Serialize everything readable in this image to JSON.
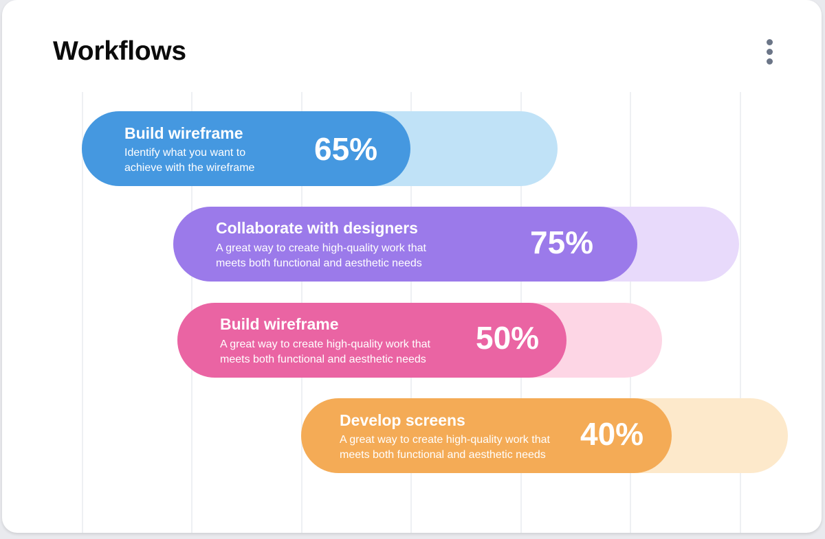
{
  "header": {
    "title": "Workflows",
    "menu_icon": "more-vertical-icon"
  },
  "workflows": [
    {
      "title": "Build wireframe",
      "description": "Identify what you want to\nachieve with the wireframe",
      "percent_label": "65%",
      "progress": 0.65,
      "color": "#4598e0",
      "track_color": "#c0e2f7"
    },
    {
      "title": "Collaborate with designers",
      "description": "A great way to create high-quality work that\nmeets both functional and aesthetic needs",
      "percent_label": "75%",
      "progress": 0.75,
      "color": "#9b7aea",
      "track_color": "#e8dafb"
    },
    {
      "title": "Build wireframe",
      "description": "A great way to create high-quality work that\nmeets both functional and aesthetic needs",
      "percent_label": "50%",
      "progress": 0.5,
      "color": "#ea64a3",
      "track_color": "#fdd6e5"
    },
    {
      "title": "Develop screens",
      "description": "A great way to create high-quality work that\nmeets both functional and aesthetic needs",
      "percent_label": "40%",
      "progress": 0.4,
      "color": "#f4ab56",
      "track_color": "#fde9cb"
    }
  ]
}
